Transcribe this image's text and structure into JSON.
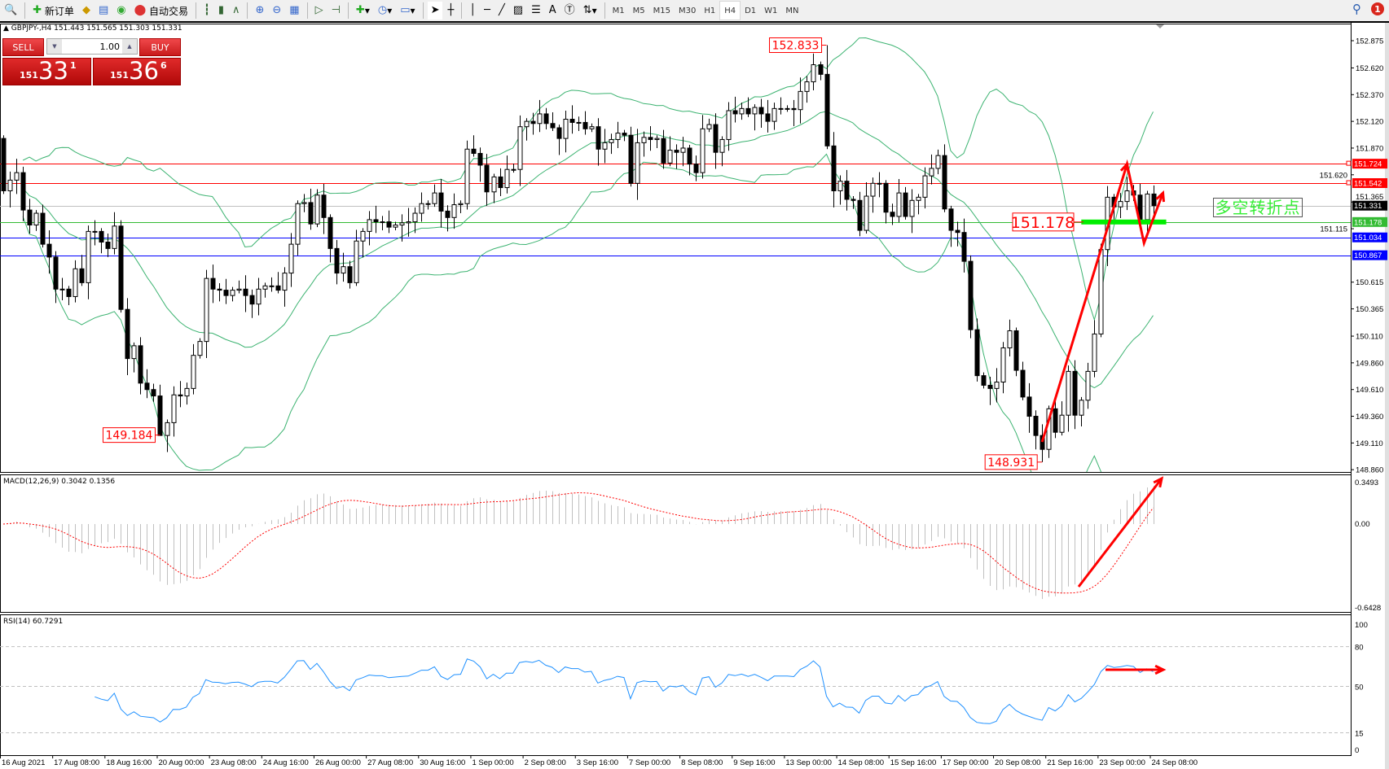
{
  "toolbar": {
    "new_order": "新订单",
    "auto_trading": "自动交易",
    "timeframes": [
      "M1",
      "M5",
      "M15",
      "M30",
      "H1",
      "H4",
      "D1",
      "W1",
      "MN"
    ],
    "active_timeframe": "H4",
    "notification_count": "1"
  },
  "symbol_line": "GBPJPY-,H4  151.443 151.565 151.303 151.331",
  "trade_panel": {
    "sell_label": "SELL",
    "buy_label": "BUY",
    "lot": "1.00",
    "sell_price": {
      "prefix": "151",
      "big": "33",
      "sup": "1"
    },
    "buy_price": {
      "prefix": "151",
      "big": "36",
      "sup": "6"
    }
  },
  "chart_data": {
    "type": "candlestick",
    "symbol": "GBPJPY-",
    "timeframe": "H4",
    "ylim": [
      148.86,
      152.875
    ],
    "price_ticks": [
      "152.875",
      "152.620",
      "152.370",
      "152.120",
      "151.870",
      "151.620",
      "151.365",
      "151.115",
      "150.615",
      "150.365",
      "150.110",
      "149.860",
      "149.610",
      "149.360",
      "149.110",
      "148.860"
    ],
    "time_labels": [
      "16 Aug 2021",
      "17 Aug 08:00",
      "18 Aug 16:00",
      "20 Aug 00:00",
      "23 Aug 08:00",
      "24 Aug 16:00",
      "26 Aug 00:00",
      "27 Aug 08:00",
      "30 Aug 16:00",
      "1 Sep 00:00",
      "2 Sep 08:00",
      "3 Sep 16:00",
      "7 Sep 00:00",
      "8 Sep 08:00",
      "9 Sep 16:00",
      "13 Sep 00:00",
      "14 Sep 08:00",
      "15 Sep 16:00",
      "17 Sep 00:00",
      "20 Sep 08:00",
      "21 Sep 16:00",
      "23 Sep 00:00",
      "24 Sep 08:00"
    ],
    "first_open": 151.96,
    "closes": [
      151.47,
      151.57,
      151.64,
      151.29,
      151.15,
      151.26,
      150.97,
      150.85,
      150.55,
      150.55,
      150.48,
      150.74,
      150.61,
      151.09,
      151.09,
      150.99,
      150.93,
      151.14,
      150.36,
      149.9,
      150.02,
      149.67,
      149.61,
      149.55,
      149.18,
      149.3,
      149.56,
      149.55,
      149.62,
      149.93,
      150.06,
      150.65,
      150.55,
      150.54,
      150.49,
      150.54,
      150.55,
      150.49,
      150.41,
      150.55,
      150.58,
      150.58,
      150.54,
      150.7,
      150.97,
      151.35,
      151.36,
      151.16,
      151.43,
      151.22,
      150.93,
      150.7,
      150.76,
      150.61,
      151.0,
      151.09,
      151.2,
      151.18,
      151.18,
      151.13,
      151.15,
      151.17,
      151.18,
      151.26,
      151.35,
      151.35,
      151.45,
      151.28,
      151.22,
      151.34,
      151.35,
      151.86,
      151.82,
      151.71,
      151.46,
      151.6,
      151.5,
      151.67,
      151.67,
      152.07,
      152.12,
      152.1,
      152.19,
      152.1,
      152.06,
      151.96,
      152.14,
      152.11,
      152.11,
      152.05,
      152.07,
      151.86,
      151.92,
      151.95,
      152.01,
      151.99,
      151.54,
      151.92,
      151.97,
      151.95,
      151.96,
      151.73,
      151.85,
      151.83,
      151.87,
      151.72,
      151.64,
      152.05,
      152.09,
      151.83,
      151.95,
      152.22,
      152.19,
      152.24,
      152.19,
      152.25,
      152.19,
      152.12,
      152.24,
      152.24,
      152.24,
      152.23,
      152.4,
      152.49,
      152.65,
      152.56,
      151.89,
      151.47,
      151.56,
      151.39,
      151.38,
      151.1,
      151.42,
      151.54,
      151.54,
      151.27,
      151.23,
      151.45,
      151.23,
      151.38,
      151.41,
      151.61,
      151.68,
      151.8,
      151.3,
      151.1,
      151.08,
      150.81,
      150.17,
      149.74,
      149.65,
      149.62,
      149.68,
      150.0,
      150.16,
      149.79,
      149.54,
      149.36,
      149.18,
      149.05,
      149.43,
      149.21,
      149.37,
      149.78,
      149.37,
      149.51,
      149.78,
      150.13,
      150.92,
      151.41,
      151.32,
      151.37,
      151.47,
      151.43,
      151.2,
      151.44,
      151.331
    ],
    "extremes": [
      {
        "label": "152.833",
        "price": 152.833,
        "bar": 126,
        "kind": "high"
      },
      {
        "label": "149.184",
        "price": 149.184,
        "bar": 24,
        "kind": "low"
      },
      {
        "label": "148.931",
        "price": 148.931,
        "bar": 159,
        "kind": "low"
      }
    ],
    "levels": [
      {
        "price": 151.724,
        "label": "151.724",
        "color": "#ff0000"
      },
      {
        "price": 151.542,
        "label": "151.542",
        "color": "#ff0000"
      },
      {
        "price": 151.331,
        "label": "151.331",
        "color": "#c0c0c0",
        "tag_bg": "#000000"
      },
      {
        "price": 151.178,
        "label": "151.178",
        "color": "#33bb33",
        "tag_bg": "#33bb33"
      },
      {
        "price": 151.034,
        "label": "151.034",
        "color": "#0000ff"
      },
      {
        "price": 150.867,
        "label": "150.867",
        "color": "#0000ff"
      }
    ],
    "level_callout": "151.178",
    "bollinger": {
      "period": 20,
      "deviation": 2,
      "color": "#3cb371"
    },
    "annotation_text": "多空转折点",
    "arrow_path": [
      [
        159,
        149.12
      ],
      [
        172,
        151.72
      ],
      [
        174.6,
        150.98
      ],
      [
        177.5,
        151.45
      ]
    ],
    "support_zone": {
      "price": 151.178,
      "from_bar": 165,
      "to_bar": 178,
      "color": "#00ee00"
    },
    "macd": {
      "title": "MACD(12,26,9) 0.3042 0.1356",
      "ticks": [
        "0.3493",
        "0.00",
        "-0.6428"
      ],
      "ylim": [
        -0.6428,
        0.3493
      ],
      "hist_color": "#c0c0c0",
      "signal_color": "#ff0000"
    },
    "rsi": {
      "title": "RSI(14) 60.7291",
      "ticks": [
        "100",
        "80",
        "50",
        "15",
        "0"
      ],
      "levels": [
        80,
        50,
        15
      ],
      "color": "#1e90ff"
    }
  },
  "colors": {
    "bear": "#000000",
    "bull": "#ffffff",
    "arrow": "#ff0000"
  }
}
